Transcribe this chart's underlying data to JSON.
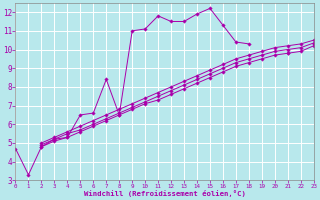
{
  "xlabel": "Windchill (Refroidissement éolien,°C)",
  "bg_color": "#b8e8ec",
  "grid_color": "#d0eef2",
  "line_color": "#aa00aa",
  "xlim": [
    0,
    23
  ],
  "ylim": [
    3,
    12.5
  ],
  "xticks": [
    0,
    1,
    2,
    3,
    4,
    5,
    6,
    7,
    8,
    9,
    10,
    11,
    12,
    13,
    14,
    15,
    16,
    17,
    18,
    19,
    20,
    21,
    22,
    23
  ],
  "yticks": [
    3,
    4,
    5,
    6,
    7,
    8,
    9,
    10,
    11,
    12
  ],
  "lines": [
    {
      "segments": [
        {
          "x": [
            0,
            1,
            2,
            3,
            4,
            5,
            6,
            7,
            8,
            9,
            10,
            11,
            12,
            13,
            14,
            15,
            16,
            17,
            18
          ],
          "y": [
            4.7,
            3.3,
            4.8,
            5.2,
            5.3,
            6.5,
            6.6,
            8.4,
            6.5,
            11.0,
            11.1,
            11.8,
            11.5,
            11.5,
            11.9,
            12.2,
            11.3,
            10.4,
            10.3
          ]
        },
        {
          "x": [
            21
          ],
          "y": [
            9.8
          ]
        },
        {
          "x": [
            23
          ],
          "y": [
            10.3
          ]
        }
      ]
    },
    {
      "segments": [
        {
          "x": [
            2,
            3,
            4,
            5,
            6,
            7,
            8,
            9,
            10,
            11,
            12,
            13,
            14,
            15,
            16,
            17,
            18,
            19,
            20,
            21,
            22,
            23
          ],
          "y": [
            4.8,
            5.1,
            5.3,
            5.6,
            5.9,
            6.2,
            6.5,
            6.8,
            7.1,
            7.3,
            7.6,
            7.9,
            8.2,
            8.5,
            8.8,
            9.1,
            9.3,
            9.5,
            9.7,
            9.8,
            9.9,
            10.2
          ]
        }
      ]
    },
    {
      "segments": [
        {
          "x": [
            2,
            3,
            4,
            5,
            6,
            7,
            8,
            9,
            10,
            11,
            12,
            13,
            14,
            15,
            16,
            17,
            18,
            19,
            20,
            21,
            22,
            23
          ],
          "y": [
            4.9,
            5.2,
            5.5,
            5.7,
            6.0,
            6.3,
            6.6,
            6.9,
            7.2,
            7.5,
            7.8,
            8.1,
            8.4,
            8.7,
            9.0,
            9.3,
            9.5,
            9.7,
            9.9,
            10.0,
            10.1,
            10.35
          ]
        }
      ]
    },
    {
      "segments": [
        {
          "x": [
            2,
            3,
            4,
            5,
            6,
            7,
            8,
            9,
            10,
            11,
            12,
            13,
            14,
            15,
            16,
            17,
            18,
            19,
            20,
            21,
            22,
            23
          ],
          "y": [
            5.0,
            5.3,
            5.6,
            5.9,
            6.2,
            6.5,
            6.8,
            7.1,
            7.4,
            7.7,
            8.0,
            8.3,
            8.6,
            8.9,
            9.2,
            9.5,
            9.7,
            9.9,
            10.1,
            10.2,
            10.3,
            10.5
          ]
        }
      ]
    }
  ]
}
